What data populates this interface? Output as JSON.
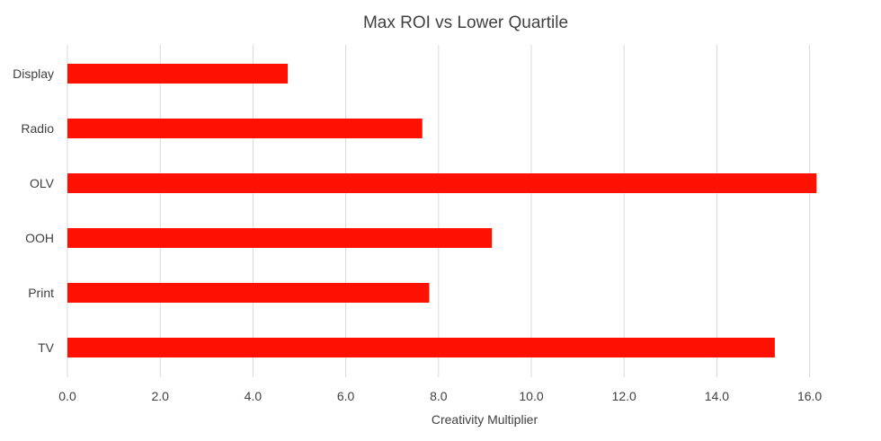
{
  "chart_data": {
    "type": "bar",
    "orientation": "horizontal",
    "title": "Max ROI vs Lower Quartile",
    "xlabel": "Creativity Multiplier",
    "ylabel": "",
    "categories": [
      "Display",
      "Radio",
      "OLV",
      "OOH",
      "Print",
      "TV"
    ],
    "values": [
      4.75,
      7.65,
      16.15,
      9.15,
      7.8,
      15.25
    ],
    "xlim": [
      0,
      16
    ],
    "xticks": [
      "0.0",
      "2.0",
      "4.0",
      "6.0",
      "8.0",
      "10.0",
      "12.0",
      "14.0",
      "16.0"
    ],
    "grid": true,
    "legend": "none",
    "bar_color": "#ff1100"
  }
}
